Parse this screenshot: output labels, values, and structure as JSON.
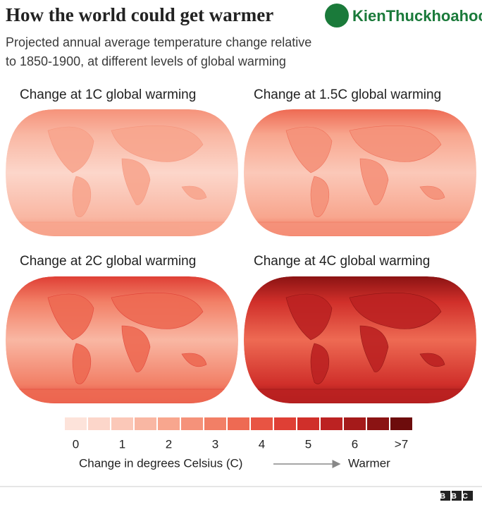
{
  "header": {
    "title": "How the world could get warmer",
    "subtitle_lines": [
      "Projected annual average temperature change relative",
      "to 1850-1900, at different levels of global warming"
    ]
  },
  "watermark": "KienThuckhoahoc.org",
  "panels": [
    {
      "title": "Change at 1C global warming"
    },
    {
      "title": "Change at 1.5C global warming"
    },
    {
      "title": "Change at 2C global warming"
    },
    {
      "title": "Change at 4C global warming"
    }
  ],
  "legend": {
    "colors": [
      "#fde3da",
      "#fcd6ca",
      "#fbc8b8",
      "#f9b7a3",
      "#f8a68e",
      "#f5927a",
      "#f27f66",
      "#ee6a53",
      "#e85443",
      "#df3f35",
      "#d02f2a",
      "#bc2222",
      "#a51a1a",
      "#8b1313",
      "#6d0c0c"
    ],
    "labels": [
      "0",
      "1",
      "2",
      "3",
      "4",
      "5",
      "6",
      ">7"
    ],
    "axis_label": "Change in degrees Celsius (C)",
    "direction_label": "Warmer"
  },
  "footer": {
    "logo": "BBC"
  }
}
